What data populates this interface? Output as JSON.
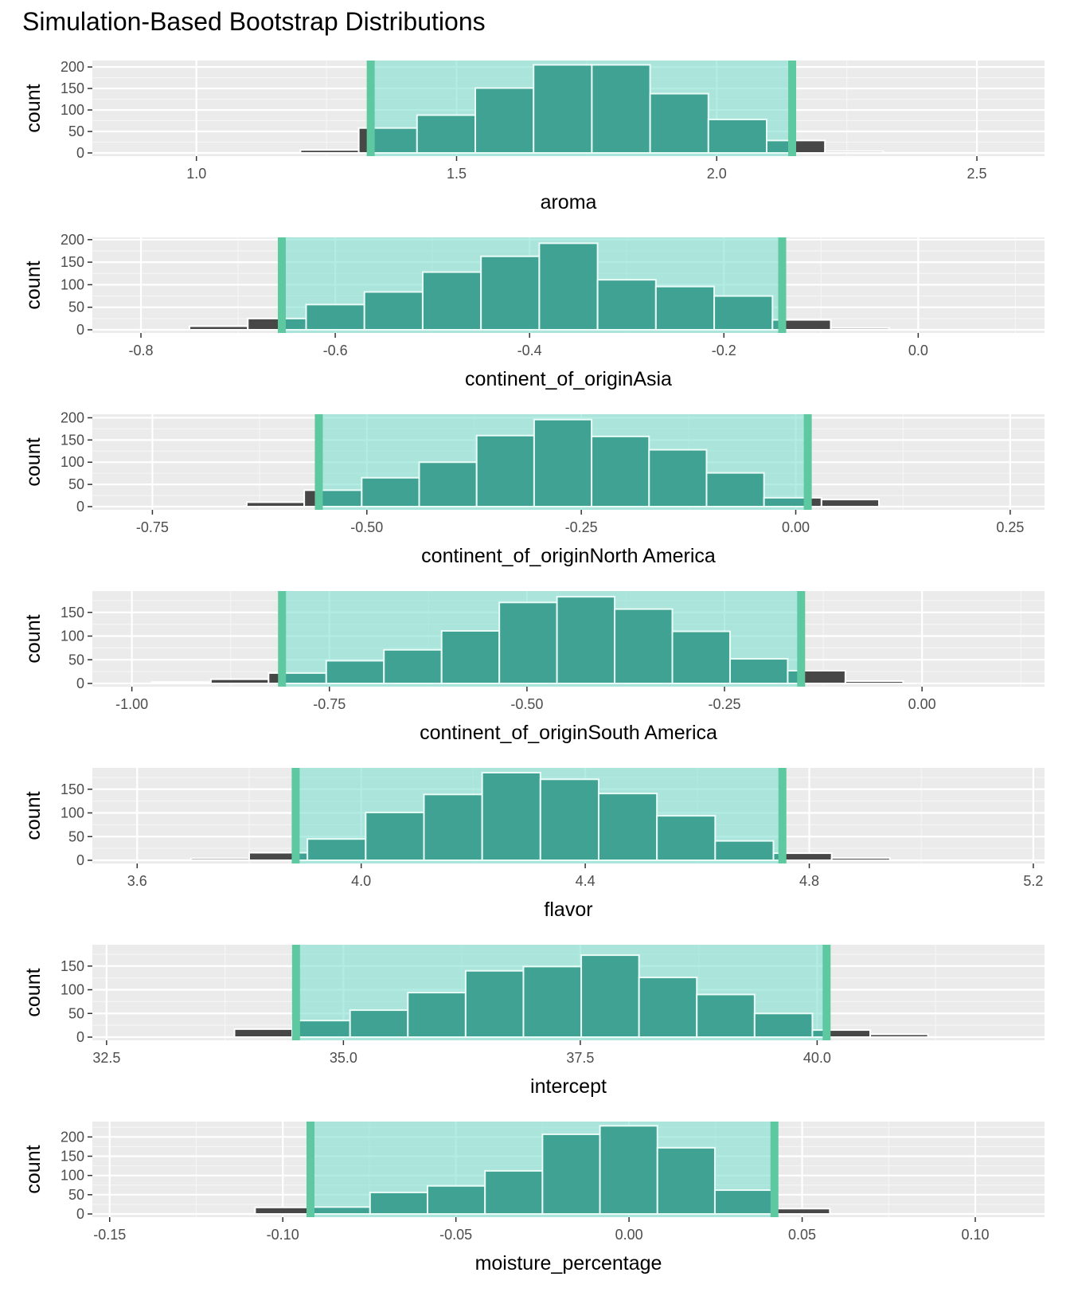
{
  "title": "Simulation-Based Bootstrap Distributions",
  "ci_color": "#5ec9a0",
  "ci_fill": "#7ee0d0",
  "bar_outside_color": "#474747",
  "bar_inside_color": "#40a293",
  "panel_background": "#ebebeb",
  "chart_data": [
    {
      "type": "bar",
      "xlabel": "aroma",
      "ylabel": "count",
      "xlim": [
        0.8,
        2.63
      ],
      "ylim": [
        0,
        215
      ],
      "xticks": [
        1.0,
        1.5,
        2.0,
        2.5
      ],
      "xtick_labels": [
        "1.0",
        "1.5",
        "2.0",
        "2.5"
      ],
      "yticks": [
        0,
        50,
        100,
        150,
        200
      ],
      "ci": [
        1.335,
        2.145
      ],
      "bins": [
        {
          "x0": 1.2,
          "x1": 1.312,
          "count": 7
        },
        {
          "x0": 1.312,
          "x1": 1.424,
          "count": 58
        },
        {
          "x0": 1.424,
          "x1": 1.536,
          "count": 88
        },
        {
          "x0": 1.536,
          "x1": 1.648,
          "count": 151
        },
        {
          "x0": 1.648,
          "x1": 1.76,
          "count": 205
        },
        {
          "x0": 1.76,
          "x1": 1.872,
          "count": 205
        },
        {
          "x0": 1.872,
          "x1": 1.984,
          "count": 138
        },
        {
          "x0": 1.984,
          "x1": 2.096,
          "count": 78
        },
        {
          "x0": 2.096,
          "x1": 2.208,
          "count": 29
        },
        {
          "x0": 2.208,
          "x1": 2.32,
          "count": 4
        }
      ]
    },
    {
      "type": "bar",
      "xlabel": "continent_of_originAsia",
      "ylabel": "count",
      "xlim": [
        -0.85,
        0.13
      ],
      "ylim": [
        0,
        205
      ],
      "xticks": [
        -0.8,
        -0.6,
        -0.4,
        -0.2,
        0.0
      ],
      "xtick_labels": [
        "-0.8",
        "-0.6",
        "-0.4",
        "-0.2",
        "0.0"
      ],
      "yticks": [
        0,
        50,
        100,
        150,
        200
      ],
      "ci": [
        -0.655,
        -0.14
      ],
      "bins": [
        {
          "x0": -0.75,
          "x1": -0.69,
          "count": 8
        },
        {
          "x0": -0.69,
          "x1": -0.63,
          "count": 25
        },
        {
          "x0": -0.63,
          "x1": -0.57,
          "count": 56
        },
        {
          "x0": -0.57,
          "x1": -0.51,
          "count": 84
        },
        {
          "x0": -0.51,
          "x1": -0.45,
          "count": 128
        },
        {
          "x0": -0.45,
          "x1": -0.39,
          "count": 163
        },
        {
          "x0": -0.39,
          "x1": -0.33,
          "count": 192
        },
        {
          "x0": -0.33,
          "x1": -0.27,
          "count": 111
        },
        {
          "x0": -0.27,
          "x1": -0.21,
          "count": 96
        },
        {
          "x0": -0.21,
          "x1": -0.15,
          "count": 75
        },
        {
          "x0": -0.15,
          "x1": -0.09,
          "count": 22
        },
        {
          "x0": -0.09,
          "x1": -0.03,
          "count": 4
        }
      ]
    },
    {
      "type": "bar",
      "xlabel": "continent_of_originNorth America",
      "ylabel": "count",
      "xlim": [
        -0.82,
        0.29
      ],
      "ylim": [
        0,
        208
      ],
      "xticks": [
        -0.75,
        -0.5,
        -0.25,
        0.0,
        0.25
      ],
      "xtick_labels": [
        "-0.75",
        "-0.50",
        "-0.25",
        "0.00",
        "0.25"
      ],
      "yticks": [
        0,
        50,
        100,
        150,
        200
      ],
      "ci": [
        -0.556,
        0.014
      ],
      "bins": [
        {
          "x0": -0.64,
          "x1": -0.573,
          "count": 10
        },
        {
          "x0": -0.573,
          "x1": -0.506,
          "count": 37
        },
        {
          "x0": -0.506,
          "x1": -0.439,
          "count": 65
        },
        {
          "x0": -0.439,
          "x1": -0.372,
          "count": 100
        },
        {
          "x0": -0.372,
          "x1": -0.305,
          "count": 160
        },
        {
          "x0": -0.305,
          "x1": -0.238,
          "count": 196
        },
        {
          "x0": -0.238,
          "x1": -0.171,
          "count": 158
        },
        {
          "x0": -0.171,
          "x1": -0.104,
          "count": 128
        },
        {
          "x0": -0.104,
          "x1": -0.037,
          "count": 76
        },
        {
          "x0": -0.037,
          "x1": 0.03,
          "count": 20
        },
        {
          "x0": 0.03,
          "x1": 0.097,
          "count": 16
        }
      ]
    },
    {
      "type": "bar",
      "xlabel": "continent_of_originSouth America",
      "ylabel": "count",
      "xlim": [
        -1.05,
        0.155
      ],
      "ylim": [
        0,
        195
      ],
      "xticks": [
        -1.0,
        -0.75,
        -0.5,
        -0.25,
        0.0
      ],
      "xtick_labels": [
        "-1.00",
        "-0.75",
        "-0.50",
        "-0.25",
        "0.00"
      ],
      "yticks": [
        0,
        50,
        100,
        150
      ],
      "ci": [
        -0.81,
        -0.153
      ],
      "bins": [
        {
          "x0": -0.975,
          "x1": -0.9,
          "count": 3
        },
        {
          "x0": -0.9,
          "x1": -0.827,
          "count": 9
        },
        {
          "x0": -0.827,
          "x1": -0.754,
          "count": 22
        },
        {
          "x0": -0.754,
          "x1": -0.681,
          "count": 48
        },
        {
          "x0": -0.681,
          "x1": -0.608,
          "count": 71
        },
        {
          "x0": -0.608,
          "x1": -0.535,
          "count": 111
        },
        {
          "x0": -0.535,
          "x1": -0.462,
          "count": 171
        },
        {
          "x0": -0.462,
          "x1": -0.389,
          "count": 183
        },
        {
          "x0": -0.389,
          "x1": -0.316,
          "count": 157
        },
        {
          "x0": -0.316,
          "x1": -0.243,
          "count": 110
        },
        {
          "x0": -0.243,
          "x1": -0.17,
          "count": 52
        },
        {
          "x0": -0.17,
          "x1": -0.097,
          "count": 27
        },
        {
          "x0": -0.097,
          "x1": -0.024,
          "count": 5
        }
      ]
    },
    {
      "type": "bar",
      "xlabel": "flavor",
      "ylabel": "count",
      "xlim": [
        3.52,
        5.22
      ],
      "ylim": [
        0,
        195
      ],
      "xticks": [
        3.6,
        4.0,
        4.4,
        4.8,
        5.2
      ],
      "xtick_labels": [
        "3.6",
        "4.0",
        "4.4",
        "4.8",
        "5.2"
      ],
      "yticks": [
        0,
        50,
        100,
        150
      ],
      "ci": [
        3.883,
        4.752
      ],
      "bins": [
        {
          "x0": 3.696,
          "x1": 3.8,
          "count": 4
        },
        {
          "x0": 3.8,
          "x1": 3.904,
          "count": 16
        },
        {
          "x0": 3.904,
          "x1": 4.008,
          "count": 45
        },
        {
          "x0": 4.008,
          "x1": 4.112,
          "count": 101
        },
        {
          "x0": 4.112,
          "x1": 4.216,
          "count": 139
        },
        {
          "x0": 4.216,
          "x1": 4.32,
          "count": 185
        },
        {
          "x0": 4.32,
          "x1": 4.424,
          "count": 171
        },
        {
          "x0": 4.424,
          "x1": 4.528,
          "count": 141
        },
        {
          "x0": 4.528,
          "x1": 4.632,
          "count": 94
        },
        {
          "x0": 4.632,
          "x1": 4.736,
          "count": 41
        },
        {
          "x0": 4.736,
          "x1": 4.84,
          "count": 15
        },
        {
          "x0": 4.84,
          "x1": 4.944,
          "count": 5
        }
      ]
    },
    {
      "type": "bar",
      "xlabel": "intercept",
      "ylabel": "count",
      "xlim": [
        32.35,
        42.4
      ],
      "ylim": [
        0,
        195
      ],
      "xticks": [
        32.5,
        35.0,
        37.5,
        40.0
      ],
      "xtick_labels": [
        "32.5",
        "35.0",
        "37.5",
        "40.0"
      ],
      "yticks": [
        0,
        50,
        100,
        150
      ],
      "ci": [
        34.5,
        40.1
      ],
      "bins": [
        {
          "x0": 33.85,
          "x1": 34.46,
          "count": 17
        },
        {
          "x0": 34.46,
          "x1": 35.07,
          "count": 35
        },
        {
          "x0": 35.07,
          "x1": 35.68,
          "count": 57
        },
        {
          "x0": 35.68,
          "x1": 36.29,
          "count": 94
        },
        {
          "x0": 36.29,
          "x1": 36.9,
          "count": 140
        },
        {
          "x0": 36.9,
          "x1": 37.51,
          "count": 149
        },
        {
          "x0": 37.51,
          "x1": 38.12,
          "count": 173
        },
        {
          "x0": 38.12,
          "x1": 38.73,
          "count": 126
        },
        {
          "x0": 38.73,
          "x1": 39.34,
          "count": 90
        },
        {
          "x0": 39.34,
          "x1": 39.95,
          "count": 50
        },
        {
          "x0": 39.95,
          "x1": 40.56,
          "count": 15
        },
        {
          "x0": 40.56,
          "x1": 41.17,
          "count": 6
        }
      ]
    },
    {
      "type": "bar",
      "xlabel": "moisture_percentage",
      "ylabel": "count",
      "xlim": [
        -0.155,
        0.12
      ],
      "ylim": [
        0,
        240
      ],
      "xticks": [
        -0.15,
        -0.1,
        -0.05,
        0.0,
        0.05,
        0.1
      ],
      "xtick_labels": [
        "-0.15",
        "-0.10",
        "-0.05",
        "0.00",
        "0.05",
        "0.10"
      ],
      "yticks": [
        0,
        50,
        100,
        150,
        200
      ],
      "ci": [
        -0.092,
        0.042
      ],
      "bins": [
        {
          "x0": -0.108,
          "x1": -0.0914,
          "count": 17
        },
        {
          "x0": -0.0914,
          "x1": -0.0748,
          "count": 18
        },
        {
          "x0": -0.0748,
          "x1": -0.0582,
          "count": 56
        },
        {
          "x0": -0.0582,
          "x1": -0.0416,
          "count": 73
        },
        {
          "x0": -0.0416,
          "x1": -0.025,
          "count": 112
        },
        {
          "x0": -0.025,
          "x1": -0.0084,
          "count": 207
        },
        {
          "x0": -0.0084,
          "x1": 0.0082,
          "count": 229
        },
        {
          "x0": 0.0082,
          "x1": 0.0248,
          "count": 172
        },
        {
          "x0": 0.0248,
          "x1": 0.0414,
          "count": 62
        },
        {
          "x0": 0.0414,
          "x1": 0.058,
          "count": 14
        }
      ]
    }
  ]
}
